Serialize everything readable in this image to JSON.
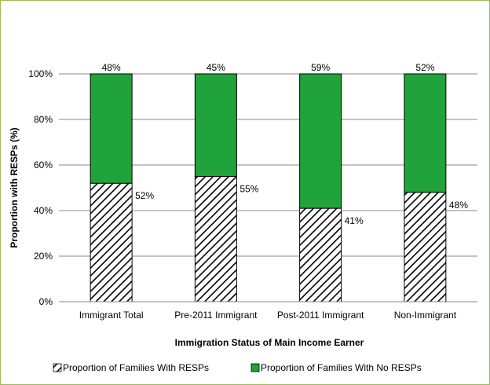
{
  "chart_data": {
    "type": "bar",
    "stacked": true,
    "percent_stacked": true,
    "categories": [
      "Immigrant Total",
      "Pre-2011 Immigrant",
      "Post-2011 Immigrant",
      "Non-Immigrant"
    ],
    "series": [
      {
        "name": "Proportion of Families With RESPs",
        "values": [
          52,
          55,
          41,
          48
        ],
        "labels": [
          "52%",
          "55%",
          "41%",
          "48%"
        ],
        "fill": "hatch",
        "color": "#000000"
      },
      {
        "name": "Proportion of Families With No RESPs",
        "values": [
          48,
          45,
          59,
          52
        ],
        "labels": [
          "48%",
          "45%",
          "59%",
          "52%"
        ],
        "fill": "solid",
        "color": "#1fa33a"
      }
    ],
    "xlabel": "Immigration Status of Main Income Earner",
    "ylabel": "Proportion with RESPs (%)",
    "ylim": [
      0,
      100
    ],
    "yticks": [
      0,
      20,
      40,
      60,
      80,
      100
    ],
    "ytick_labels": [
      "0%",
      "20%",
      "40%",
      "60%",
      "80%",
      "100%"
    ],
    "grid": true,
    "legend": "bottom",
    "border_color": "#9bbb59",
    "grid_color": "#888888"
  }
}
